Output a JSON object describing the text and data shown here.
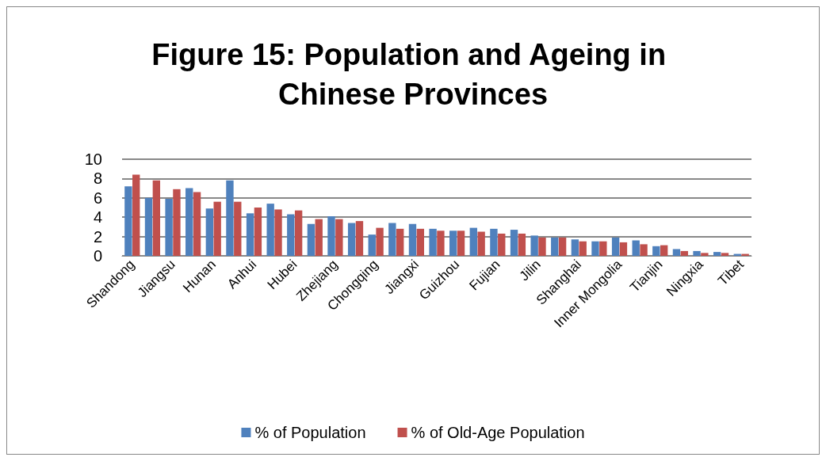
{
  "chart_data": {
    "type": "bar",
    "title": "Figure 15: Population and Ageing in Chinese Provinces",
    "categories": [
      "Shandong",
      null,
      "Jiangsu",
      null,
      "Hunan",
      null,
      "Anhui",
      null,
      "Hubei",
      null,
      "Zhejiang",
      null,
      "Chongqing",
      null,
      "Jiangxi",
      null,
      "Guizhou",
      null,
      "Fujian",
      null,
      "Jilin",
      null,
      "Shanghai",
      null,
      "Inner Mongolia",
      null,
      "Tianjin",
      null,
      "Ningxia",
      null,
      "Tibet"
    ],
    "series": [
      {
        "name": "% of Population",
        "color": "#4f81bd",
        "values": [
          7.2,
          6.0,
          5.9,
          7.0,
          4.9,
          7.8,
          4.4,
          5.4,
          4.3,
          3.3,
          4.1,
          3.4,
          2.2,
          3.4,
          3.3,
          2.8,
          2.6,
          2.9,
          2.8,
          2.7,
          2.1,
          1.9,
          1.7,
          1.5,
          1.9,
          1.6,
          1.0,
          0.7,
          0.5,
          0.4,
          0.2
        ]
      },
      {
        "name": "% of Old-Age Population",
        "color": "#c0504d",
        "values": [
          8.4,
          7.8,
          6.9,
          6.6,
          5.6,
          5.6,
          5.0,
          4.8,
          4.7,
          3.8,
          3.8,
          3.6,
          2.9,
          2.8,
          2.8,
          2.6,
          2.6,
          2.5,
          2.3,
          2.3,
          1.9,
          1.9,
          1.5,
          1.5,
          1.4,
          1.2,
          1.1,
          0.5,
          0.3,
          0.3,
          0.2
        ]
      }
    ],
    "ylim": [
      0,
      10
    ],
    "yticks": [
      0,
      2,
      4,
      6,
      8,
      10
    ],
    "grid": "y",
    "legend": "bottom"
  }
}
